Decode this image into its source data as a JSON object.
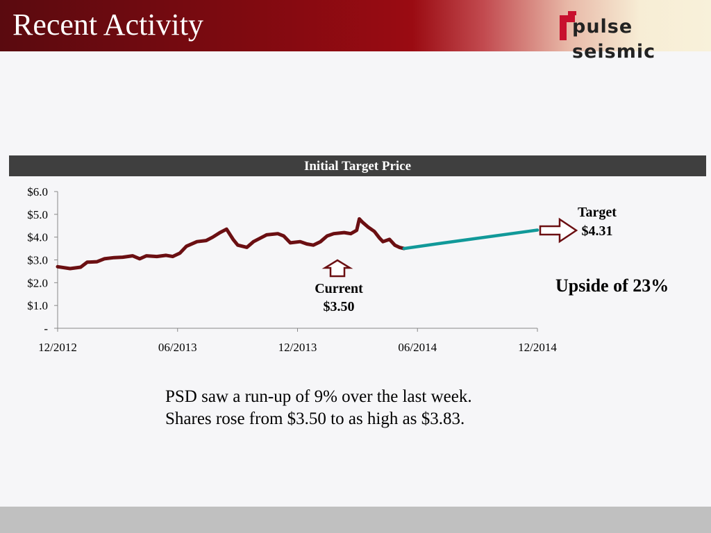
{
  "header": {
    "title": "Recent Activity",
    "logo_text": "pulse seismic"
  },
  "chart_data": {
    "type": "line",
    "title": "Initial Target Price",
    "xlabel": "",
    "ylabel": "",
    "x_ticks": [
      "12/2012",
      "06/2013",
      "12/2013",
      "06/2014",
      "12/2014"
    ],
    "y_ticks": [
      "-",
      "$1.0",
      "$2.0",
      "$3.0",
      "$4.0",
      "$5.0",
      "$6.0"
    ],
    "ylim": [
      0,
      6
    ],
    "xlim": [
      "2012-12-01",
      "2014-12-01"
    ],
    "series": [
      {
        "color": "#6b0f12",
        "points": [
          [
            "2012-12-01",
            2.7
          ],
          [
            "2012-12-20",
            2.62
          ],
          [
            "2013-01-05",
            2.68
          ],
          [
            "2013-01-15",
            2.9
          ],
          [
            "2013-01-30",
            2.92
          ],
          [
            "2013-02-10",
            3.05
          ],
          [
            "2013-02-25",
            3.1
          ],
          [
            "2013-03-10",
            3.12
          ],
          [
            "2013-03-25",
            3.18
          ],
          [
            "2013-04-05",
            3.05
          ],
          [
            "2013-04-15",
            3.18
          ],
          [
            "2013-05-01",
            3.15
          ],
          [
            "2013-05-15",
            3.2
          ],
          [
            "2013-05-25",
            3.15
          ],
          [
            "2013-06-05",
            3.3
          ],
          [
            "2013-06-15",
            3.6
          ],
          [
            "2013-07-01",
            3.8
          ],
          [
            "2013-07-15",
            3.85
          ],
          [
            "2013-07-25",
            4.0
          ],
          [
            "2013-08-05",
            4.2
          ],
          [
            "2013-08-15",
            4.35
          ],
          [
            "2013-08-25",
            3.9
          ],
          [
            "2013-09-01",
            3.65
          ],
          [
            "2013-09-15",
            3.55
          ],
          [
            "2013-09-25",
            3.8
          ],
          [
            "2013-10-05",
            3.95
          ],
          [
            "2013-10-15",
            4.1
          ],
          [
            "2013-11-01",
            4.15
          ],
          [
            "2013-11-10",
            4.05
          ],
          [
            "2013-11-20",
            3.75
          ],
          [
            "2013-12-05",
            3.8
          ],
          [
            "2013-12-15",
            3.7
          ],
          [
            "2013-12-25",
            3.65
          ],
          [
            "2014-01-05",
            3.8
          ],
          [
            "2014-01-15",
            4.05
          ],
          [
            "2014-01-25",
            4.15
          ],
          [
            "2014-02-10",
            4.2
          ],
          [
            "2014-02-20",
            4.15
          ],
          [
            "2014-03-01",
            4.3
          ],
          [
            "2014-03-05",
            4.8
          ],
          [
            "2014-03-10",
            4.65
          ],
          [
            "2014-03-18",
            4.45
          ],
          [
            "2014-03-28",
            4.25
          ],
          [
            "2014-04-05",
            3.95
          ],
          [
            "2014-04-10",
            3.8
          ],
          [
            "2014-04-20",
            3.9
          ],
          [
            "2014-04-28",
            3.65
          ],
          [
            "2014-05-05",
            3.55
          ],
          [
            "2014-05-12",
            3.5
          ]
        ]
      },
      {
        "color": "#119999",
        "points": [
          [
            "2014-05-12",
            3.5
          ],
          [
            "2014-06-30",
            3.7
          ],
          [
            "2014-12-01",
            4.31
          ]
        ]
      }
    ]
  },
  "annotations": {
    "current_label": "Current",
    "current_value": "$3.50",
    "target_label": "Target",
    "target_value": "$4.31",
    "upside": "Upside of 23%"
  },
  "body": {
    "line1": "PSD saw a run-up of 9% over the last week.",
    "line2": "Shares rose from $3.50 to as high as $3.83."
  }
}
